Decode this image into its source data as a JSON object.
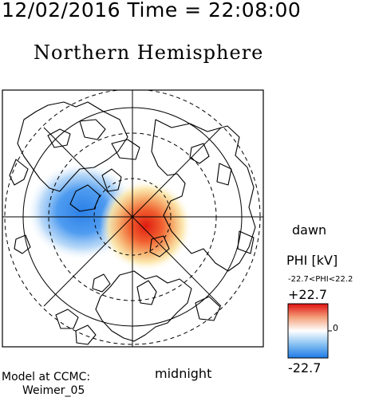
{
  "header": {
    "timestamp": "12/02/2016 Time = 22:08:00"
  },
  "plot": {
    "hemisphere_title": "Northern Hemisphere",
    "dawn_label": "dawn",
    "midnight_label": "midnight"
  },
  "legend": {
    "variable_label": "PHI [kV]",
    "range_text": "-22.7<PHI<22.2",
    "max_label": "+22.7",
    "zero_label": "0",
    "min_label": "-22.7",
    "colors": {
      "low": "#1e7be6",
      "mid": "#ffffff",
      "high": "#e01010"
    }
  },
  "footer": {
    "model_line": "Model at CCMC:",
    "model_name": "Weimer_05"
  }
}
